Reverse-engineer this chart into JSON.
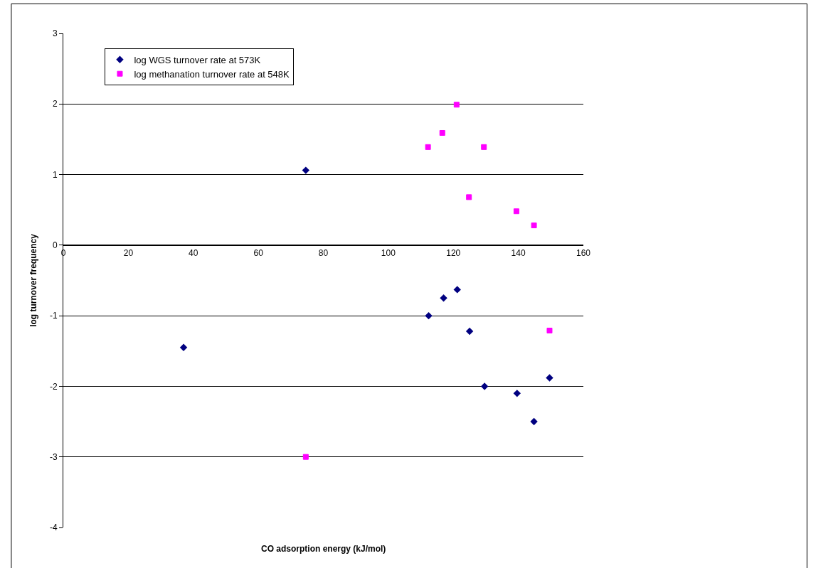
{
  "chart_data": {
    "type": "scatter",
    "xlabel": "CO adsorption energy (kJ/mol)",
    "ylabel": "log turnover frequency",
    "series": [
      {
        "name": "log WGS turnover rate at 573K",
        "color": "#000080",
        "marker": "diamond",
        "x": [
          37,
          74.6,
          112.4,
          116.8,
          117,
          121.2,
          125,
          129.6,
          139.6,
          144.8,
          149.6
        ],
        "values": [
          -1.45,
          1.06,
          -1.0,
          null,
          -0.75,
          -0.63,
          -1.22,
          -2.0,
          -2.1,
          -2.5,
          -1.88
        ]
      },
      {
        "name": "log methanation turnover rate at 548K",
        "color": "#ff00ff",
        "marker": "square",
        "x": [
          74.6,
          112.2,
          116.6,
          121,
          124.8,
          129.4,
          139.4,
          144.8,
          149.6
        ],
        "values": [
          -3.0,
          1.39,
          1.59,
          1.99,
          0.68,
          1.39,
          0.48,
          0.28,
          -1.21
        ]
      }
    ],
    "xlim": [
      0,
      160
    ],
    "xticks": [
      0,
      20,
      40,
      60,
      80,
      100,
      120,
      140,
      160
    ],
    "ylim": [
      -4,
      3
    ],
    "yticks": [
      -4,
      -3,
      -2,
      -1,
      0,
      1,
      2,
      3
    ],
    "grid": "y",
    "legend": "top left"
  }
}
